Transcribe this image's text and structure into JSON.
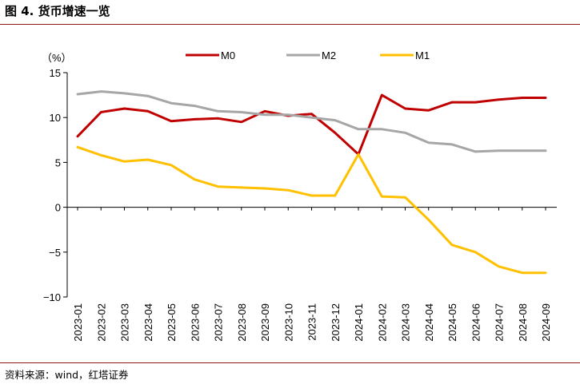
{
  "figure": {
    "title": "图 4. 货币增速一览",
    "source": "资料来源：wind，红塔证券"
  },
  "chart_data": {
    "type": "line",
    "ylabel": "（%）",
    "ylim": [
      -10,
      15
    ],
    "yticks": [
      15,
      10,
      5,
      0,
      -5,
      -10
    ],
    "ytick_labels": [
      "15",
      "10",
      "5",
      "0",
      "−5",
      "−10"
    ],
    "categories": [
      "2023-01",
      "2023-02",
      "2023-03",
      "2023-04",
      "2023-05",
      "2023-06",
      "2023-07",
      "2023-08",
      "2023-09",
      "2023-10",
      "2023-11",
      "2023-12",
      "2024-01",
      "2024-02",
      "2024-03",
      "2024-04",
      "2024-05",
      "2024-06",
      "2024-07",
      "2024-08",
      "2024-09"
    ],
    "legend_position": "top-center",
    "grid": false,
    "series": [
      {
        "name": "M0",
        "color": "#c00000",
        "values": [
          7.9,
          10.6,
          11.0,
          10.7,
          9.6,
          9.8,
          9.9,
          9.5,
          10.7,
          10.2,
          10.4,
          8.3,
          5.9,
          12.5,
          11.0,
          10.8,
          11.7,
          11.7,
          12.0,
          12.2,
          12.2
        ]
      },
      {
        "name": "M2",
        "color": "#a6a6a6",
        "values": [
          12.6,
          12.9,
          12.7,
          12.4,
          11.6,
          11.3,
          10.7,
          10.6,
          10.3,
          10.3,
          10.0,
          9.7,
          8.7,
          8.7,
          8.3,
          7.2,
          7.0,
          6.2,
          6.3,
          6.3,
          6.3
        ]
      },
      {
        "name": "M1",
        "color": "#ffc000",
        "values": [
          6.7,
          5.8,
          5.1,
          5.3,
          4.7,
          3.1,
          2.3,
          2.2,
          2.1,
          1.9,
          1.3,
          1.3,
          5.9,
          1.2,
          1.1,
          -1.4,
          -4.2,
          -5.0,
          -6.6,
          -7.3,
          -7.3
        ]
      }
    ]
  }
}
